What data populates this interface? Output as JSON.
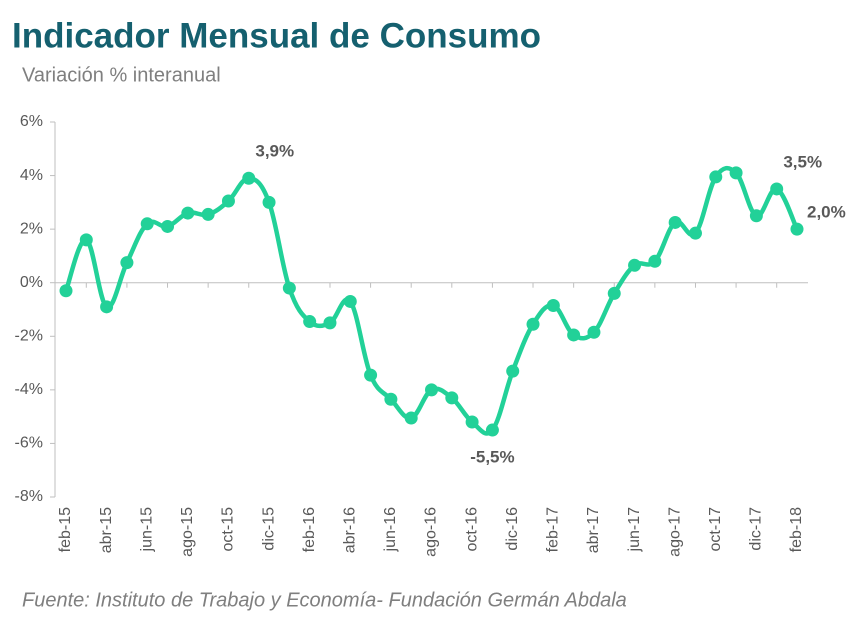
{
  "chart_data": {
    "type": "line",
    "title": "Indicador Mensual de Consumo",
    "subtitle": "Variación % interanual",
    "source": "Fuente: Instituto de Trabajo y Economía- Fundación Germán Abdala",
    "categories": [
      "feb-15",
      null,
      "abr-15",
      null,
      "jun-15",
      null,
      "ago-15",
      null,
      "oct-15",
      null,
      "dic-15",
      null,
      "feb-16",
      null,
      "abr-16",
      null,
      "jun-16",
      null,
      "ago-16",
      null,
      "oct-16",
      null,
      "dic-16",
      null,
      "feb-17",
      null,
      "abr-17",
      null,
      "jun-17",
      null,
      "ago-17",
      null,
      "oct-17",
      null,
      "dic-17",
      null,
      "feb-18"
    ],
    "series": [
      {
        "color": "#22d198",
        "values": [
          -0.3,
          1.6,
          -0.9,
          0.75,
          2.2,
          2.1,
          2.6,
          2.55,
          3.05,
          3.9,
          3.0,
          -0.2,
          -1.45,
          -1.5,
          -0.7,
          -3.45,
          -4.35,
          -5.05,
          -4.0,
          -4.3,
          -5.2,
          -5.5,
          -3.3,
          -1.55,
          -0.85,
          -1.95,
          -1.85,
          -0.4,
          0.65,
          0.8,
          2.25,
          1.85,
          3.95,
          4.1,
          2.5,
          3.5,
          2.0
        ],
        "value_labels": [
          null,
          null,
          null,
          null,
          null,
          null,
          null,
          null,
          null,
          "3,9%",
          null,
          null,
          null,
          null,
          null,
          null,
          null,
          null,
          null,
          null,
          null,
          "-5,5%",
          null,
          null,
          null,
          null,
          null,
          null,
          null,
          null,
          null,
          null,
          null,
          null,
          null,
          "3,5%",
          "2,0%"
        ]
      }
    ],
    "ylim": [
      -8,
      6
    ],
    "yticks": [
      {
        "value": -8,
        "label": "-8%"
      },
      {
        "value": -6,
        "label": "-6%"
      },
      {
        "value": -4,
        "label": "-4%"
      },
      {
        "value": -2,
        "label": "-2%"
      },
      {
        "value": 0,
        "label": "0%"
      },
      {
        "value": 2,
        "label": "2%"
      },
      {
        "value": 4,
        "label": "4%"
      },
      {
        "value": 6,
        "label": "6%"
      }
    ],
    "grid": false
  }
}
